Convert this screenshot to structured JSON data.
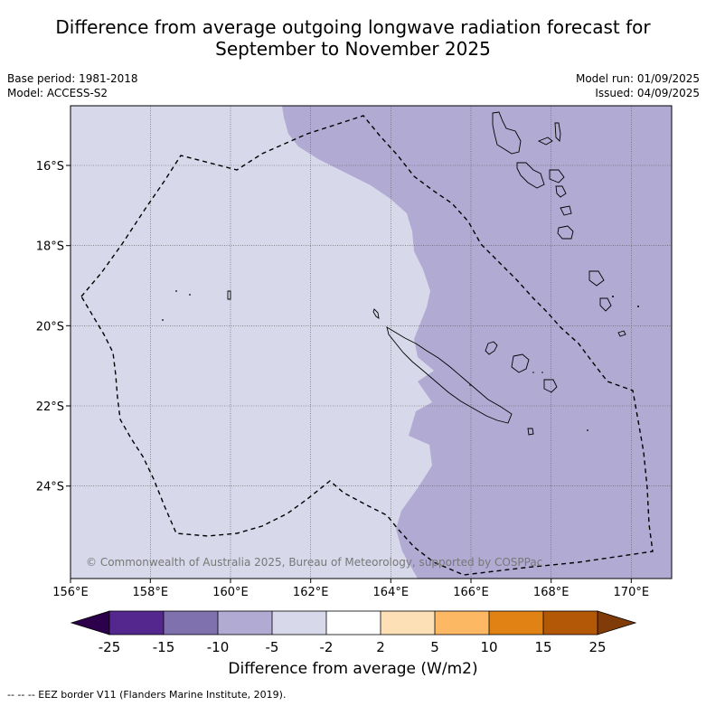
{
  "title_line1": "Difference from average outgoing longwave radiation forecast for",
  "title_line2": "September to November 2025",
  "base_period": "Base period: 1981-2018",
  "model": "Model: ACCESS-S2",
  "model_run": "Model run: 01/09/2025",
  "issued": "Issued: 04/09/2025",
  "copyright": "© Commonwealth of Australia 2025, Bureau of Meteorology, supported by COSPPac",
  "colorbar_label": "Difference from average (W/m2)",
  "footnote": "--  --  -- EEZ border V11 (Flanders Marine Institute, 2019).",
  "map": {
    "lon_range": [
      156,
      171
    ],
    "lat_range": [
      -26.3,
      -14.5
    ],
    "lon_ticks": [
      "156°E",
      "158°E",
      "160°E",
      "162°E",
      "164°E",
      "166°E",
      "168°E",
      "170°E"
    ],
    "lat_ticks": [
      "16°S",
      "18°S",
      "20°S",
      "22°S",
      "24°S"
    ]
  },
  "colorbar": {
    "ticks": [
      "-25",
      "-15",
      "-10",
      "-5",
      "-2",
      "2",
      "5",
      "10",
      "15",
      "25"
    ],
    "colors": [
      "#54278f",
      "#7f70ae",
      "#b1abd3",
      "#d8d8eb",
      "#ffffff",
      "#fee0b6",
      "#fdb863",
      "#e08214",
      "#b35806"
    ],
    "under_color": "#2d004b",
    "over_color": "#7f3b08"
  },
  "shading": {
    "west_category": "-5 to -2",
    "west_color": "#d8d8eb",
    "east_category": "-10 to -5",
    "east_color": "#b1abd3"
  }
}
